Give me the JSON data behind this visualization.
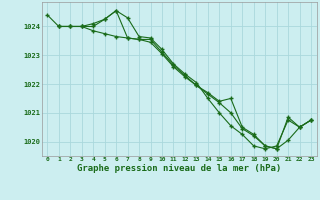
{
  "background_color": "#cceef0",
  "grid_color": "#aad8dc",
  "line_color": "#1a6b1a",
  "marker_color": "#1a6b1a",
  "xlabel": "Graphe pression niveau de la mer (hPa)",
  "xlabel_fontsize": 6.5,
  "ylabel_ticks": [
    1020,
    1021,
    1022,
    1023,
    1024
  ],
  "xlim": [
    -0.5,
    23.5
  ],
  "ylim": [
    1019.5,
    1024.85
  ],
  "xticks": [
    0,
    1,
    2,
    3,
    4,
    5,
    6,
    7,
    8,
    9,
    10,
    11,
    12,
    13,
    14,
    15,
    16,
    17,
    18,
    19,
    20,
    21,
    22,
    23
  ],
  "series": [
    {
      "x": [
        0,
        1,
        2,
        3,
        4,
        5,
        6,
        7,
        8,
        9,
        10,
        11,
        12,
        13,
        14,
        15,
        16,
        17,
        18,
        19,
        20,
        21,
        22,
        23
      ],
      "y": [
        1024.4,
        1024.0,
        1024.0,
        1024.0,
        1024.1,
        1024.25,
        1024.55,
        1024.3,
        1023.65,
        1023.6,
        1023.2,
        1022.7,
        1022.35,
        1022.05,
        1021.5,
        1021.0,
        1020.55,
        1020.25,
        1019.85,
        1019.75,
        1019.85,
        1020.75,
        1020.5,
        1020.75
      ]
    },
    {
      "x": [
        1,
        2,
        3,
        4,
        5,
        6,
        7,
        8,
        9,
        10,
        11,
        12,
        13,
        14,
        15,
        16,
        17,
        18,
        19,
        20,
        21,
        22,
        23
      ],
      "y": [
        1024.0,
        1024.0,
        1024.0,
        1024.0,
        1024.25,
        1024.55,
        1023.6,
        1023.55,
        1023.55,
        1023.1,
        1022.65,
        1022.3,
        1021.95,
        1021.7,
        1021.4,
        1021.5,
        1020.5,
        1020.25,
        1019.85,
        1019.75,
        1020.85,
        1020.5,
        1020.75
      ]
    },
    {
      "x": [
        1,
        2,
        3,
        4,
        5,
        6,
        7,
        8,
        9,
        10,
        11,
        12,
        13,
        14,
        15,
        16,
        17,
        18,
        19,
        20,
        21,
        22,
        23
      ],
      "y": [
        1024.0,
        1024.0,
        1024.0,
        1023.85,
        1023.75,
        1023.65,
        1023.6,
        1023.55,
        1023.45,
        1023.05,
        1022.6,
        1022.25,
        1021.95,
        1021.65,
        1021.35,
        1021.0,
        1020.45,
        1020.2,
        1019.85,
        1019.75,
        1020.05,
        1020.5,
        1020.75
      ]
    }
  ]
}
